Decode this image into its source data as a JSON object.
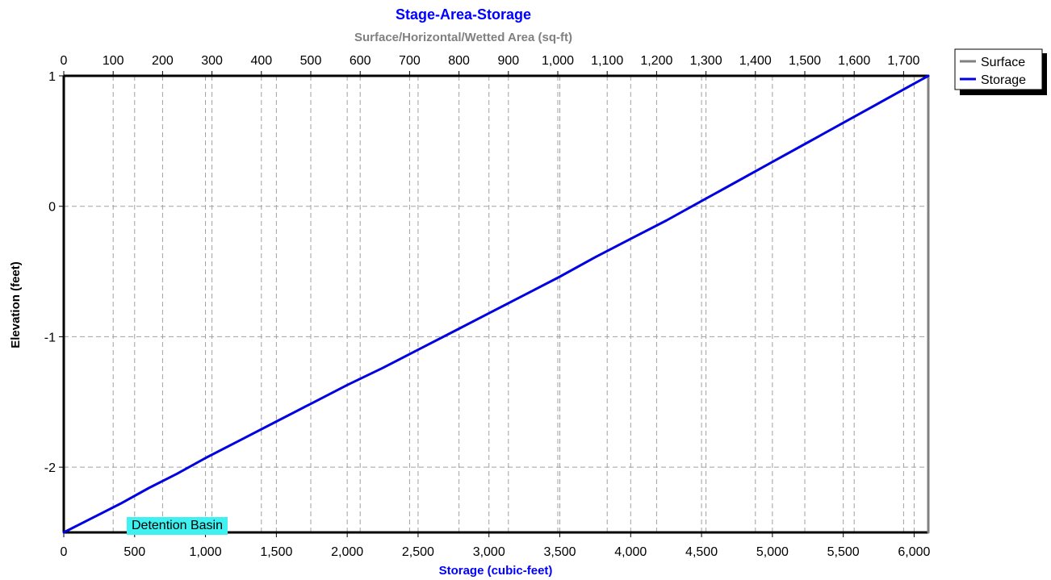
{
  "chart_data": {
    "type": "line",
    "title": "Stage-Area-Storage",
    "top_axis_label": "Surface/Horizontal/Wetted Area (sq-ft)",
    "xlabel": "Storage (cubic-feet)",
    "ylabel": "Elevation  (feet)",
    "xlim": [
      0,
      6100
    ],
    "top_xlim": [
      0,
      1750
    ],
    "ylim": [
      -2.5,
      1
    ],
    "x_ticks": [
      0,
      500,
      1000,
      1500,
      2000,
      2500,
      3000,
      3500,
      4000,
      4500,
      5000,
      5500,
      6000
    ],
    "x_tick_labels": [
      "0",
      "500",
      "1,000",
      "1,500",
      "2,000",
      "2,500",
      "3,000",
      "3,500",
      "4,000",
      "4,500",
      "5,000",
      "5,500",
      "6,000"
    ],
    "top_x_ticks": [
      0,
      100,
      200,
      300,
      400,
      500,
      600,
      700,
      800,
      900,
      1000,
      1100,
      1200,
      1300,
      1400,
      1500,
      1600,
      1700
    ],
    "top_x_tick_labels": [
      "0",
      "100",
      "200",
      "300",
      "400",
      "500",
      "600",
      "700",
      "800",
      "900",
      "1,000",
      "1,100",
      "1,200",
      "1,300",
      "1,400",
      "1,500",
      "1,600",
      "1,700"
    ],
    "y_ticks": [
      -2,
      -1,
      0,
      1
    ],
    "y_tick_labels": [
      "-2",
      "-1",
      "0",
      "1"
    ],
    "grid": true,
    "legend_position": "right",
    "annotation": "Detention Basin",
    "series": [
      {
        "name": "Surface",
        "color": "#808080",
        "axis": "top",
        "x": [
          1750,
          1750
        ],
        "y": [
          -2.5,
          1
        ]
      },
      {
        "name": "Storage",
        "color": "#0000e0",
        "axis": "bottom",
        "x": [
          0,
          200,
          400,
          600,
          800,
          1000,
          1250,
          1500,
          1750,
          2000,
          2250,
          2500,
          2750,
          3000,
          3250,
          3500,
          3750,
          4000,
          4250,
          4500,
          4750,
          5000,
          5250,
          5500,
          5750,
          6000,
          6100
        ],
        "y": [
          -2.5,
          -2.39,
          -2.28,
          -2.16,
          -2.05,
          -1.93,
          -1.79,
          -1.65,
          -1.51,
          -1.37,
          -1.24,
          -1.1,
          -0.96,
          -0.82,
          -0.68,
          -0.54,
          -0.39,
          -0.25,
          -0.11,
          0.04,
          0.19,
          0.34,
          0.49,
          0.64,
          0.79,
          0.94,
          1.0
        ]
      }
    ],
    "colors": {
      "title": "#0000ff",
      "top_axis_label": "#808080",
      "xlabel": "#0000ff",
      "annotation_bg": "#3ff1f1"
    }
  }
}
